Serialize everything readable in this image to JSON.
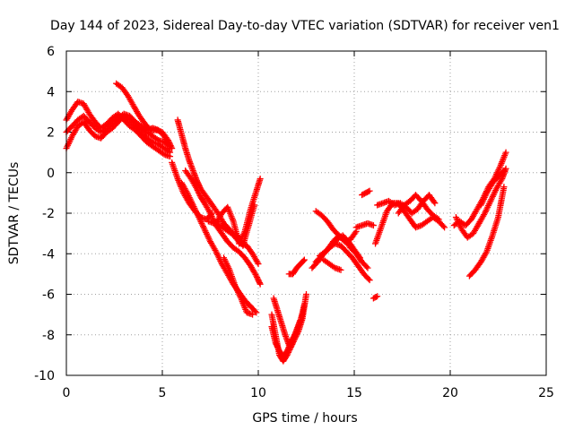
{
  "chart_data": {
    "type": "scatter",
    "title": "Day 144 of 2023, Sidereal Day-to-day VTEC variation (SDTVAR) for receiver ven1",
    "xlabel": "GPS time / hours",
    "ylabel": "SDTVAR / TECUs",
    "xlim": [
      0,
      25
    ],
    "ylim": [
      -10,
      6
    ],
    "xticks": [
      0,
      5,
      10,
      15,
      20,
      25
    ],
    "yticks": [
      -10,
      -8,
      -6,
      -4,
      -2,
      0,
      2,
      4,
      6
    ],
    "grid": true,
    "marker": "+",
    "marker_color": "#ff0000",
    "series": [
      {
        "name": "s1",
        "x": [
          0.0,
          0.3,
          0.6,
          0.9,
          1.2,
          1.5,
          1.8,
          2.1,
          2.4,
          2.7,
          3.0,
          3.3,
          3.6,
          3.9,
          4.2,
          4.5,
          4.8,
          5.1,
          5.4
        ],
        "y": [
          2.6,
          3.1,
          3.5,
          3.4,
          2.9,
          2.5,
          2.2,
          2.4,
          2.7,
          2.9,
          2.6,
          2.3,
          2.1,
          1.8,
          1.5,
          1.3,
          1.1,
          0.9,
          0.8
        ]
      },
      {
        "name": "s2",
        "x": [
          0.0,
          0.3,
          0.6,
          0.9,
          1.2,
          1.5,
          1.8,
          2.1,
          2.4,
          2.7,
          3.0,
          3.3,
          3.6,
          3.9,
          4.2,
          4.5,
          4.8,
          5.1,
          5.4
        ],
        "y": [
          1.2,
          1.8,
          2.3,
          2.5,
          2.1,
          1.8,
          1.7,
          2.0,
          2.2,
          2.5,
          2.8,
          2.6,
          2.3,
          2.0,
          1.7,
          1.5,
          1.4,
          1.2,
          1.0
        ]
      },
      {
        "name": "s3",
        "x": [
          0.0,
          0.3,
          0.6,
          0.9,
          1.2,
          1.5,
          1.8,
          2.1,
          2.4,
          2.7,
          3.0,
          3.3,
          3.6,
          3.9,
          4.2,
          4.5,
          4.8,
          5.1,
          5.4
        ],
        "y": [
          2.0,
          2.3,
          2.6,
          2.8,
          2.5,
          2.2,
          2.0,
          2.2,
          2.5,
          2.7,
          2.9,
          2.8,
          2.5,
          2.3,
          2.0,
          1.8,
          1.6,
          1.5,
          1.3
        ]
      },
      {
        "name": "s4",
        "x": [
          2.6,
          2.9,
          3.2,
          3.5,
          3.8,
          4.1,
          4.4,
          4.7,
          5.0,
          5.3,
          5.5
        ],
        "y": [
          4.4,
          4.2,
          3.8,
          3.3,
          2.8,
          2.4,
          2.1,
          2.1,
          2.0,
          1.6,
          1.2
        ]
      },
      {
        "name": "s5",
        "x": [
          3.6,
          3.9,
          4.2,
          4.5,
          4.8,
          5.1,
          5.4
        ],
        "y": [
          2.3,
          2.2,
          2.1,
          2.2,
          2.1,
          1.8,
          1.2
        ]
      },
      {
        "name": "s6",
        "x": [
          5.8,
          6.0,
          6.2,
          6.4,
          6.6,
          6.8,
          7.0,
          7.3,
          7.6,
          7.9,
          8.2,
          8.5,
          8.8,
          9.1,
          9.4,
          9.7,
          10.0
        ],
        "y": [
          2.6,
          1.9,
          1.2,
          0.6,
          0.1,
          -0.4,
          -0.8,
          -1.2,
          -1.6,
          -2.0,
          -2.5,
          -2.8,
          -3.2,
          -3.5,
          -3.6,
          -4.0,
          -4.5
        ]
      },
      {
        "name": "s7",
        "x": [
          5.5,
          5.8,
          6.1,
          6.4,
          6.7,
          7.0,
          7.3,
          7.6
        ],
        "y": [
          0.5,
          -0.3,
          -1.0,
          -1.5,
          -1.9,
          -2.2,
          -2.3,
          -2.0
        ]
      },
      {
        "name": "s8",
        "x": [
          6.2,
          6.5,
          6.8,
          7.0,
          7.2,
          7.5,
          7.8,
          8.1,
          8.4,
          8.7,
          9.0,
          9.3,
          9.6,
          9.9,
          10.1
        ],
        "y": [
          0.1,
          -0.3,
          -0.8,
          -1.2,
          -1.5,
          -2.0,
          -2.6,
          -3.0,
          -3.4,
          -3.7,
          -3.9,
          -4.2,
          -4.6,
          -5.1,
          -5.5
        ]
      },
      {
        "name": "s9",
        "x": [
          6.0,
          6.3,
          6.6,
          6.9,
          7.2,
          7.5,
          7.8,
          8.1,
          8.4,
          8.7,
          9.0,
          9.3,
          9.6,
          9.9
        ],
        "y": [
          -0.5,
          -1.0,
          -1.6,
          -2.2,
          -2.8,
          -3.4,
          -3.9,
          -4.5,
          -5.0,
          -5.5,
          -5.9,
          -6.3,
          -6.6,
          -6.9
        ]
      },
      {
        "name": "s10",
        "x": [
          7.4,
          7.7,
          8.0,
          8.3,
          8.6,
          8.9,
          9.2,
          9.5,
          9.8
        ],
        "y": [
          -2.4,
          -2.5,
          -2.6,
          -2.8,
          -3.0,
          -3.1,
          -3.6,
          -2.6,
          -1.6
        ]
      },
      {
        "name": "s11",
        "x": [
          7.8,
          8.1,
          8.4,
          8.7,
          9.0,
          9.3,
          9.6,
          9.9,
          10.1
        ],
        "y": [
          -2.5,
          -2.0,
          -1.7,
          -2.4,
          -3.5,
          -2.9,
          -1.8,
          -0.9,
          -0.3
        ]
      },
      {
        "name": "s12",
        "x": [
          8.2,
          8.5,
          8.8,
          9.1,
          9.4,
          9.7
        ],
        "y": [
          -4.2,
          -4.8,
          -5.6,
          -6.2,
          -6.9,
          -7.0
        ]
      },
      {
        "name": "s13",
        "x": [
          10.7,
          10.9,
          11.1,
          11.3,
          11.5,
          11.7,
          11.9,
          12.1,
          12.3,
          12.5
        ],
        "y": [
          -7.0,
          -8.0,
          -9.0,
          -9.3,
          -9.0,
          -8.6,
          -8.2,
          -7.8,
          -7.2,
          -6.0
        ]
      },
      {
        "name": "s14",
        "x": [
          10.8,
          11.0,
          11.2,
          11.4,
          11.6,
          11.8,
          12.0,
          12.2,
          12.4
        ],
        "y": [
          -6.2,
          -6.8,
          -7.4,
          -8.0,
          -8.5,
          -8.2,
          -7.8,
          -7.3,
          -6.5
        ]
      },
      {
        "name": "s15",
        "x": [
          10.7,
          10.9,
          11.1,
          11.3,
          11.5,
          11.7,
          11.9,
          12.1,
          12.3
        ],
        "y": [
          -7.6,
          -8.4,
          -8.8,
          -9.1,
          -8.8,
          -8.4,
          -8.0,
          -7.5,
          -7.0
        ]
      },
      {
        "name": "s16",
        "x": [
          11.6,
          11.8,
          12.0,
          12.2,
          12.4
        ],
        "y": [
          -5.0,
          -5.0,
          -4.7,
          -4.5,
          -4.3
        ]
      },
      {
        "name": "s17",
        "x": [
          12.8,
          13.1,
          13.4,
          13.7,
          14.0,
          14.3,
          14.6,
          14.9,
          15.2,
          15.5,
          15.8
        ],
        "y": [
          -4.7,
          -4.4,
          -4.0,
          -3.7,
          -3.5,
          -3.6,
          -3.9,
          -4.2,
          -4.6,
          -5.0,
          -5.3
        ]
      },
      {
        "name": "s18",
        "x": [
          13.0,
          13.3,
          13.6,
          13.9,
          14.2,
          14.5,
          14.8,
          15.1,
          15.4,
          15.7
        ],
        "y": [
          -4.4,
          -4.1,
          -3.8,
          -3.4,
          -3.1,
          -3.3,
          -3.7,
          -4.0,
          -4.4,
          -4.7
        ]
      },
      {
        "name": "s19",
        "x": [
          13.2,
          13.5,
          13.8,
          14.1,
          14.4,
          14.7,
          15.0,
          15.3
        ],
        "y": [
          -4.1,
          -3.9,
          -3.6,
          -3.3,
          -3.1,
          -3.4,
          -3.8,
          -4.2
        ]
      },
      {
        "name": "s20",
        "x": [
          13.4,
          13.7,
          14.0,
          14.3
        ],
        "y": [
          -4.3,
          -4.5,
          -4.7,
          -4.8
        ]
      },
      {
        "name": "s21",
        "x": [
          13.0,
          13.3,
          13.6,
          13.9,
          14.2,
          14.5,
          14.8,
          15.1
        ],
        "y": [
          -1.9,
          -2.1,
          -2.4,
          -2.8,
          -3.1,
          -3.4,
          -3.3,
          -2.9
        ]
      },
      {
        "name": "s22",
        "x": [
          15.1,
          15.4,
          15.7,
          16.0
        ],
        "y": [
          -2.7,
          -2.6,
          -2.5,
          -2.6
        ]
      },
      {
        "name": "s23",
        "x": [
          15.4,
          15.6,
          15.8
        ],
        "y": [
          -1.1,
          -1.0,
          -0.9
        ]
      },
      {
        "name": "s24",
        "x": [
          16.0,
          16.2
        ],
        "y": [
          -6.2,
          -6.1
        ]
      },
      {
        "name": "s25",
        "x": [
          16.1,
          16.4,
          16.7,
          17.0,
          17.3,
          17.6,
          17.9,
          18.2,
          18.5,
          18.8,
          19.1,
          19.4,
          19.7
        ],
        "y": [
          -3.5,
          -2.7,
          -1.9,
          -1.5,
          -1.5,
          -1.9,
          -2.3,
          -2.7,
          -2.6,
          -2.4,
          -2.2,
          -2.4,
          -2.7
        ]
      },
      {
        "name": "s26",
        "x": [
          16.2,
          16.5,
          16.8,
          17.1,
          17.4,
          17.7,
          18.0,
          18.3,
          18.6,
          18.9,
          19.2
        ],
        "y": [
          -1.6,
          -1.5,
          -1.4,
          -1.6,
          -1.5,
          -1.7,
          -2.0,
          -1.8,
          -1.4,
          -1.1,
          -1.5
        ]
      },
      {
        "name": "s27",
        "x": [
          17.3,
          17.6,
          17.9,
          18.2,
          18.5,
          18.8,
          19.1,
          19.4
        ],
        "y": [
          -2.0,
          -1.6,
          -1.4,
          -1.1,
          -1.4,
          -1.8,
          -2.1,
          -2.3
        ]
      },
      {
        "name": "s28",
        "x": [
          20.2,
          20.5,
          20.8,
          21.1,
          21.4,
          21.7,
          22.0,
          22.3,
          22.6,
          22.9
        ],
        "y": [
          -2.6,
          -2.4,
          -2.6,
          -2.3,
          -1.8,
          -1.3,
          -0.7,
          -0.3,
          0.3,
          1.0
        ]
      },
      {
        "name": "s29",
        "x": [
          20.3,
          20.6,
          20.9,
          21.2,
          21.5,
          21.8,
          22.1,
          22.4,
          22.7,
          22.9
        ],
        "y": [
          -2.2,
          -2.8,
          -3.2,
          -3.0,
          -2.5,
          -2.0,
          -1.4,
          -0.8,
          -0.3,
          0.2
        ]
      },
      {
        "name": "s30",
        "x": [
          21.0,
          21.3,
          21.6,
          21.9,
          22.2,
          22.5,
          22.8
        ],
        "y": [
          -5.1,
          -4.8,
          -4.4,
          -3.9,
          -3.1,
          -2.2,
          -0.7
        ]
      },
      {
        "name": "s31",
        "x": [
          21.6,
          21.9,
          22.2,
          22.5,
          22.8
        ],
        "y": [
          -1.6,
          -1.0,
          -0.5,
          -0.2,
          0.1
        ]
      }
    ]
  }
}
